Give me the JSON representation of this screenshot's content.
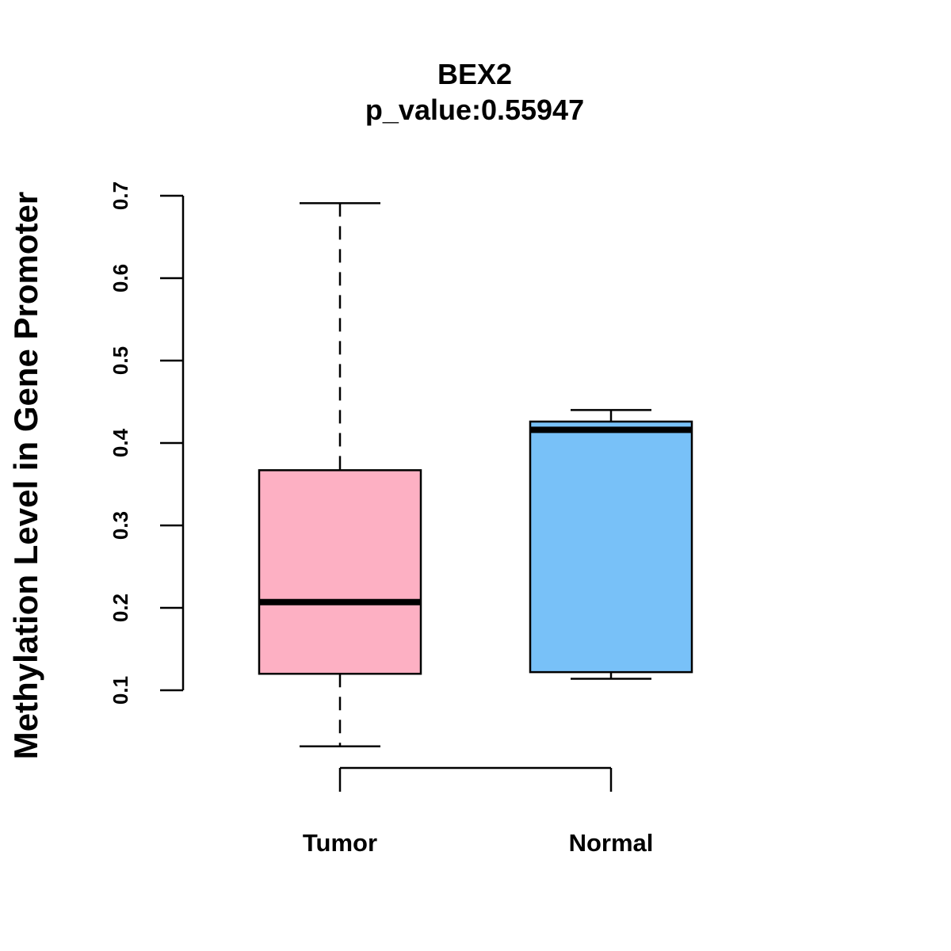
{
  "chart_data": {
    "type": "box",
    "title": "BEX2",
    "subtitle": "p_value:0.55947",
    "xlabel": "",
    "ylabel": "Methylation Level in Gene Promoter",
    "y_ticks": [
      0.1,
      0.2,
      0.3,
      0.4,
      0.5,
      0.6,
      0.7
    ],
    "y_tick_labels": [
      "0.1",
      "0.2",
      "0.3",
      "0.4",
      "0.5",
      "0.6",
      "0.7"
    ],
    "categories": [
      "Tumor",
      "Normal"
    ],
    "series": [
      {
        "name": "Tumor",
        "min": 0.032,
        "q1": 0.12,
        "median": 0.207,
        "q3": 0.367,
        "max": 0.691,
        "color": "#FDB0C3"
      },
      {
        "name": "Normal",
        "min": 0.114,
        "q1": 0.122,
        "median": 0.416,
        "q3": 0.426,
        "max": 0.44,
        "color": "#78C1F8"
      }
    ],
    "grid": false,
    "legend": "none"
  }
}
